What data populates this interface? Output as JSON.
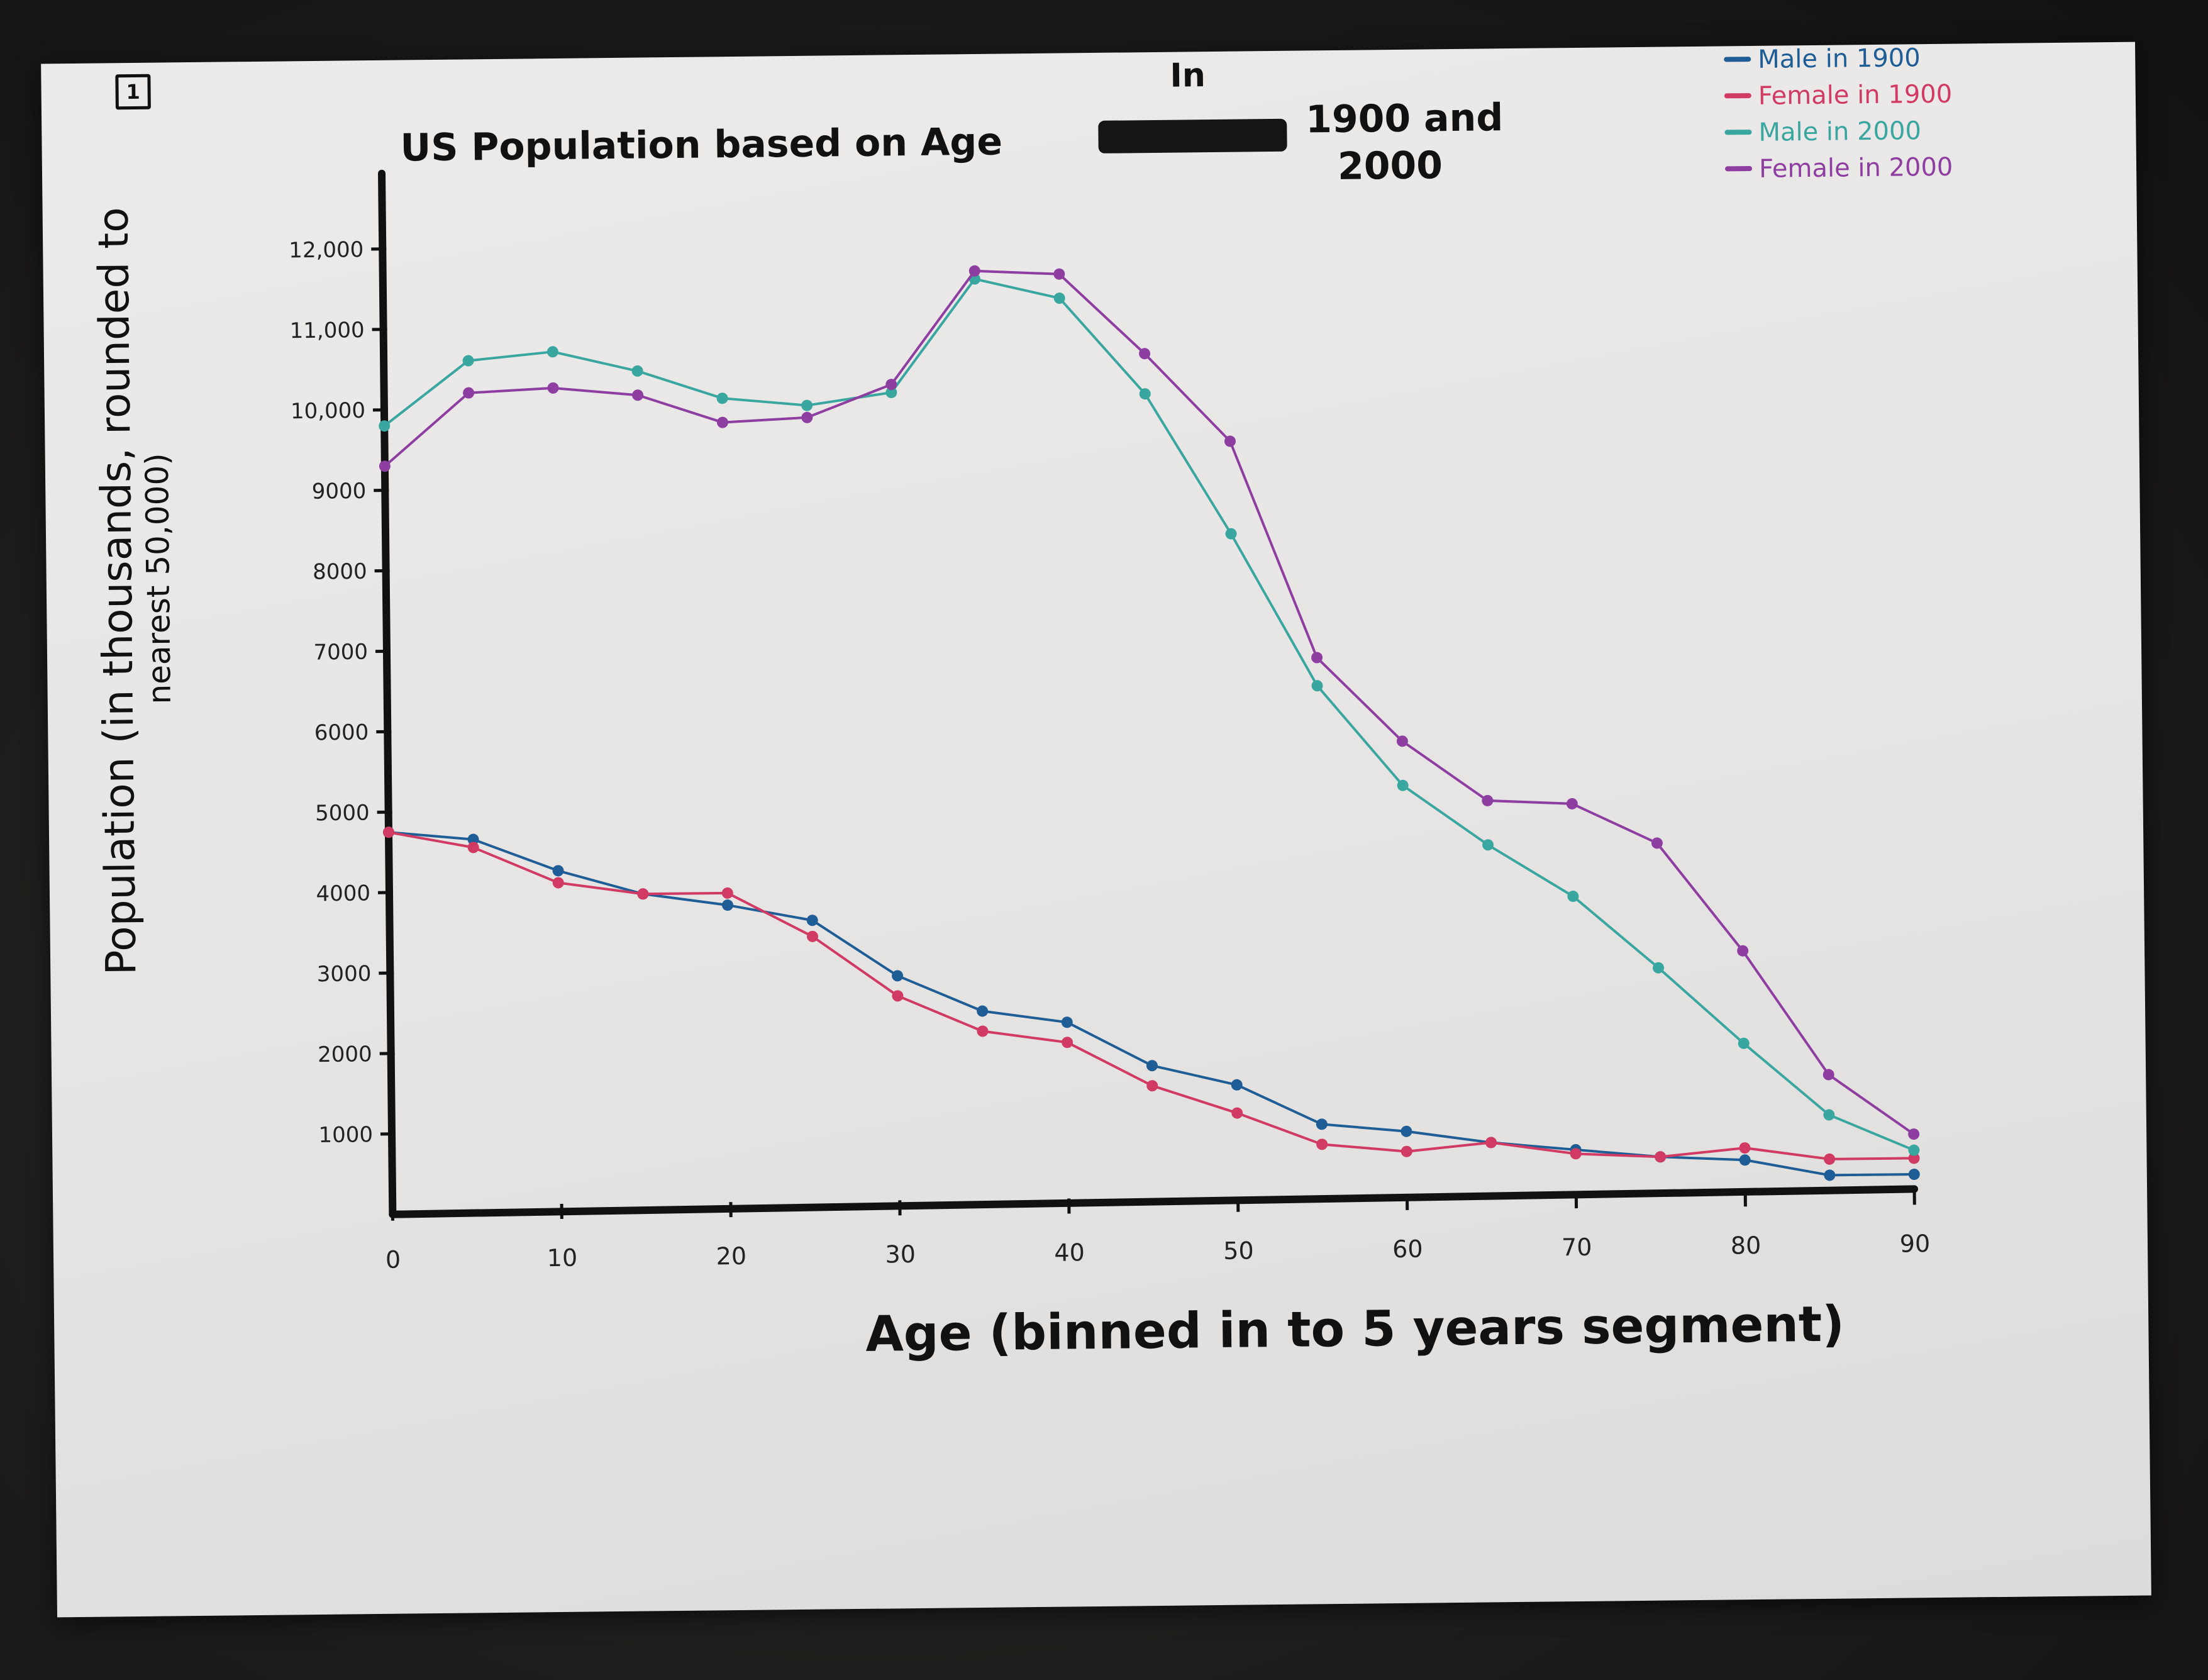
{
  "page": {
    "corner_mark": "1"
  },
  "chart_data": {
    "type": "line",
    "title_line1": "US Population based on Age",
    "title_inserted_word": "In",
    "title_line1_end": "1900 and",
    "title_line2": "2000",
    "xlabel": "Age (binned in to 5 years segment)",
    "ylabel_line1": "Population (in thousands, rounded to",
    "ylabel_line2": "nearest 50,000)",
    "legend_position": "top-right",
    "grid": false,
    "xlim": [
      0,
      90
    ],
    "ylim": [
      0,
      12000
    ],
    "x_ticks": [
      "0",
      "10",
      "20",
      "30",
      "40",
      "50",
      "60",
      "70",
      "80",
      "90"
    ],
    "y_ticks": [
      "1000",
      "2000",
      "3000",
      "4000",
      "5000",
      "6000",
      "7000",
      "8000",
      "9000",
      "10,000",
      "11,000",
      "12,000"
    ],
    "x": [
      0,
      5,
      10,
      15,
      20,
      25,
      30,
      35,
      40,
      45,
      50,
      55,
      60,
      65,
      70,
      75,
      80,
      85,
      90
    ],
    "series": [
      {
        "name": "Male in 1900",
        "color": "#1f5d96",
        "values": [
          4750,
          4650,
          4250,
          3950,
          3800,
          3600,
          2900,
          2450,
          2300,
          1750,
          1500,
          1000,
          900,
          750,
          650,
          550,
          500,
          300,
          300
        ]
      },
      {
        "name": "Female in 1900",
        "color": "#d13a63",
        "values": [
          4750,
          4550,
          4100,
          3950,
          3950,
          3400,
          2650,
          2200,
          2050,
          1500,
          1150,
          750,
          650,
          750,
          600,
          550,
          650,
          500,
          500
        ]
      },
      {
        "name": "Male in 2000",
        "color": "#3aa6a0",
        "values": [
          9800,
          10600,
          10700,
          10450,
          10100,
          10000,
          10150,
          11550,
          11300,
          10100,
          8350,
          6450,
          5200,
          4450,
          3800,
          2900,
          1950,
          1050,
          600
        ]
      },
      {
        "name": "Female in 2000",
        "color": "#8e3ea0",
        "values": [
          9300,
          10200,
          10250,
          10150,
          9800,
          9850,
          10250,
          11650,
          11600,
          10600,
          9500,
          6800,
          5750,
          5000,
          4950,
          4450,
          3100,
          1550,
          800
        ]
      }
    ]
  }
}
